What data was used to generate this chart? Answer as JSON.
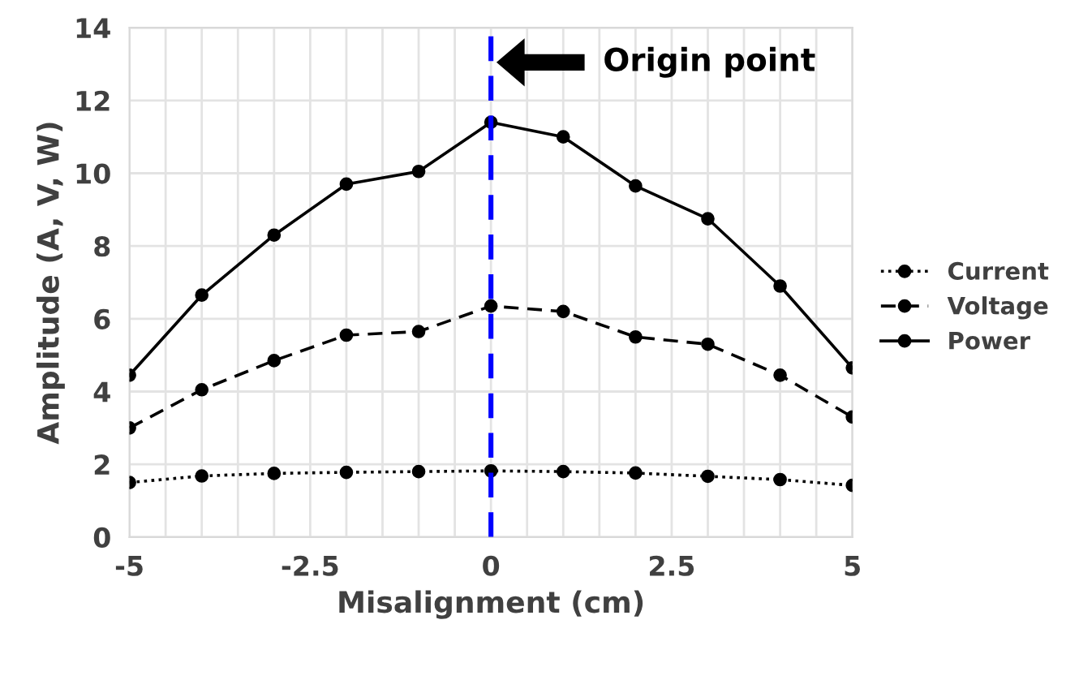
{
  "chart_data": {
    "type": "line",
    "xlabel": "Misalignment (cm)",
    "ylabel": "Amplitude (A, V, W)",
    "x": [
      -5,
      -4,
      -3,
      -2,
      -1,
      0,
      1,
      2,
      3,
      4,
      5
    ],
    "series": [
      {
        "name": "Current",
        "color": "#000000",
        "line_style": "dotted",
        "values": [
          1.5,
          1.68,
          1.75,
          1.78,
          1.8,
          1.82,
          1.8,
          1.76,
          1.67,
          1.58,
          1.42
        ]
      },
      {
        "name": "Voltage",
        "color": "#000000",
        "line_style": "dashed",
        "values": [
          3.0,
          4.05,
          4.85,
          5.55,
          5.65,
          6.35,
          6.2,
          5.5,
          5.3,
          4.45,
          3.3
        ]
      },
      {
        "name": "Power",
        "color": "#000000",
        "line_style": "solid",
        "values": [
          4.45,
          6.65,
          8.3,
          9.7,
          10.05,
          11.4,
          11.0,
          9.65,
          8.75,
          6.9,
          4.65
        ]
      }
    ],
    "marker": "circle",
    "xlim": [
      -5,
      5
    ],
    "ylim": [
      0,
      14
    ],
    "xticks": [
      -5,
      {
        "value": -4.5,
        "label": null
      },
      {
        "value": -4,
        "label": null
      },
      {
        "value": -3.5,
        "label": null
      },
      {
        "value": -3,
        "label": null
      },
      -2.5,
      {
        "value": -2,
        "label": null
      },
      {
        "value": -1.5,
        "label": null
      },
      {
        "value": -1,
        "label": null
      },
      {
        "value": -0.5,
        "label": null
      },
      0,
      {
        "value": 0.5,
        "label": null
      },
      {
        "value": 1,
        "label": null
      },
      {
        "value": 1.5,
        "label": null
      },
      {
        "value": 2,
        "label": null
      },
      2.5,
      {
        "value": 3,
        "label": null
      },
      {
        "value": 3.5,
        "label": null
      },
      {
        "value": 4,
        "label": null
      },
      {
        "value": 4.5,
        "label": null
      },
      5
    ],
    "yticks": [
      0,
      2,
      4,
      6,
      8,
      10,
      12,
      14
    ],
    "ref_lines": [
      {
        "axis": "x",
        "value": 0,
        "color": "#0000ff",
        "line_style": "dashed"
      }
    ],
    "annotations": [
      "Origin point"
    ],
    "grid": true,
    "legend": "right"
  }
}
